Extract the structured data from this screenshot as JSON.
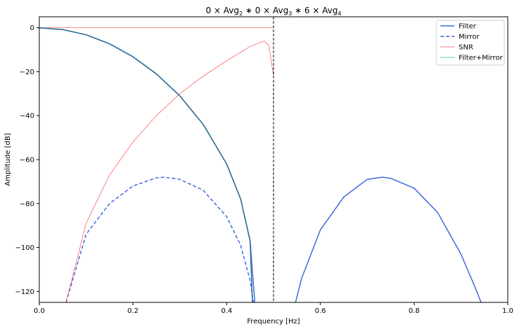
{
  "chart_data": {
    "type": "line",
    "title": "0 × Avg₂ ∗ 0 × Avg₃ ∗ 6 × Avg₄",
    "title_parts": {
      "c2": "0",
      "n2": "2",
      "c3": "0",
      "n3": "3",
      "c4": "6",
      "n4": "4"
    },
    "xlabel": "Frequency [Hz]",
    "ylabel": "Amplitude [dB]",
    "xlim": [
      0,
      1.0
    ],
    "ylim": [
      -125,
      5
    ],
    "xticks": [
      0.0,
      0.2,
      0.4,
      0.6,
      0.8,
      1.0
    ],
    "xtick_labels": [
      "0.0",
      "0.2",
      "0.4",
      "0.6",
      "0.8",
      "1.0"
    ],
    "yticks": [
      0,
      -20,
      -40,
      -60,
      -80,
      -100,
      -120
    ],
    "ytick_labels": [
      "0",
      "−20",
      "−40",
      "−60",
      "−80",
      "−100",
      "−120"
    ],
    "grid": false,
    "legend_position": "top-right",
    "vline_x": 0.5,
    "series": [
      {
        "name": "Filter",
        "color": "#4169e1",
        "style": "solid",
        "x": [
          0.0,
          0.05,
          0.1,
          0.15,
          0.2,
          0.25,
          0.3,
          0.35,
          0.4,
          0.43,
          0.45,
          0.46,
          0.547,
          0.56,
          0.6,
          0.65,
          0.7,
          0.733,
          0.75,
          0.8,
          0.85,
          0.9,
          0.93,
          0.943
        ],
        "y": [
          0,
          -0.8,
          -3.2,
          -7.3,
          -13.2,
          -21,
          -31,
          -44,
          -62,
          -78,
          -97,
          -125,
          -125,
          -114,
          -92,
          -77,
          -69,
          -68,
          -68.5,
          -73,
          -84,
          -103,
          -118,
          -125
        ]
      },
      {
        "name": "Mirror",
        "color": "#4169e1",
        "style": "dashed",
        "x": [
          0.057,
          0.1,
          0.15,
          0.2,
          0.25,
          0.267,
          0.3,
          0.35,
          0.4,
          0.43,
          0.45,
          0.457
        ],
        "y": [
          -125,
          -94,
          -80,
          -72,
          -68.3,
          -68,
          -69,
          -74,
          -86,
          -99,
          -115,
          -125
        ]
      },
      {
        "name": "SNR",
        "color": "#ff4d4d",
        "style": "solid",
        "x": [
          0.057,
          0.1,
          0.15,
          0.2,
          0.25,
          0.3,
          0.35,
          0.4,
          0.45,
          0.48,
          0.49,
          0.5
        ],
        "y": [
          -125,
          -89,
          -67,
          -52,
          -40,
          -30,
          -22,
          -15,
          -8.5,
          -6,
          -8,
          -22
        ]
      },
      {
        "name": "Filter+Mirror",
        "color": "#3cb371",
        "style": "solid",
        "x": [
          0.0,
          0.05,
          0.1,
          0.15,
          0.2,
          0.25,
          0.3,
          0.35,
          0.4,
          0.43,
          0.45,
          0.455
        ],
        "y": [
          0,
          -0.8,
          -3.2,
          -7.3,
          -13.2,
          -21,
          -31,
          -44,
          -62,
          -78,
          -97,
          -125
        ]
      }
    ],
    "extra_lines": [
      {
        "of": "SNR",
        "x": [
          0.0,
          0.5
        ],
        "y": [
          0,
          0
        ]
      }
    ]
  }
}
